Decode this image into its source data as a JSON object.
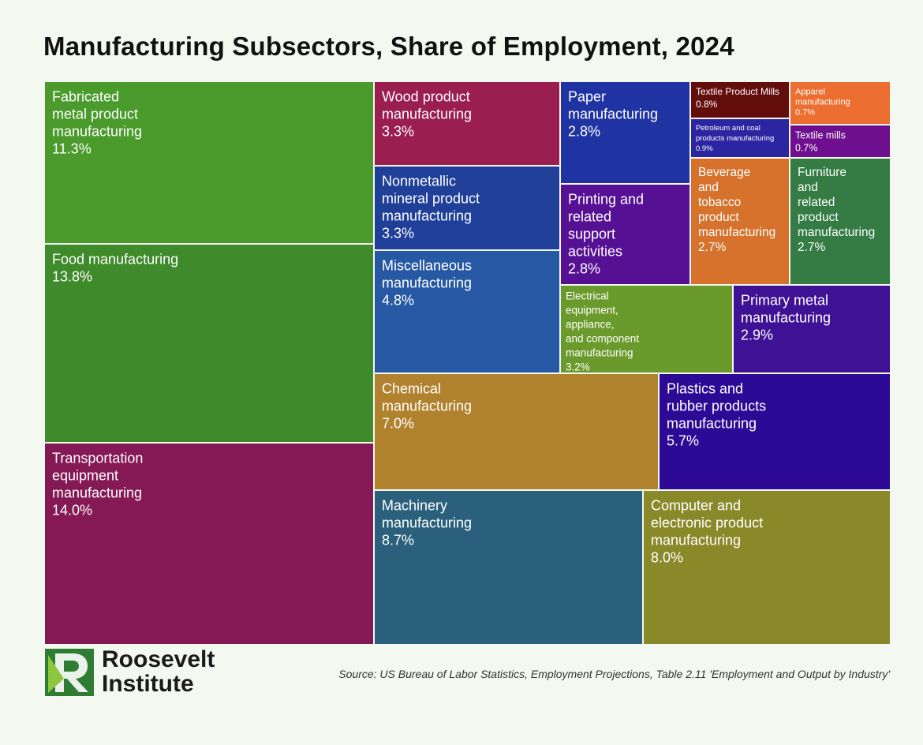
{
  "chart_data": {
    "type": "treemap",
    "title": "Manufacturing Subsectors, Share of Employment, 2024",
    "value_unit": "%",
    "items": [
      {
        "id": "fabricated-metal",
        "label": [
          "Fabricated",
          "metal product",
          "manufacturing"
        ],
        "value": 11.3,
        "value_label": "11.3%",
        "color": "#4a9a2c"
      },
      {
        "id": "food",
        "label": [
          "Food manufacturing"
        ],
        "value": 13.8,
        "value_label": "13.8%",
        "color": "#3f8a2a"
      },
      {
        "id": "transportation-equipment",
        "label": [
          "Transportation",
          "equipment",
          "manufacturing"
        ],
        "value": 14.0,
        "value_label": "14.0%",
        "color": "#851955"
      },
      {
        "id": "wood-product",
        "label": [
          "Wood product",
          "manufacturing"
        ],
        "value": 3.3,
        "value_label": "3.3%",
        "color": "#9a1e50"
      },
      {
        "id": "nonmetallic-mineral",
        "label": [
          "Nonmetallic",
          "mineral product",
          "manufacturing"
        ],
        "value": 3.3,
        "value_label": "3.3%",
        "color": "#1f3f99"
      },
      {
        "id": "miscellaneous",
        "label": [
          "Miscellaneous",
          "manufacturing"
        ],
        "value": 4.8,
        "value_label": "4.8%",
        "color": "#2758a4"
      },
      {
        "id": "paper",
        "label": [
          "Paper",
          "manufacturing"
        ],
        "value": 2.8,
        "value_label": "2.8%",
        "color": "#1f34a2"
      },
      {
        "id": "printing",
        "label": [
          "Printing and",
          "related",
          "support",
          "activities"
        ],
        "value": 2.8,
        "value_label": "2.8%",
        "color": "#561094"
      },
      {
        "id": "textile-product-mills",
        "label": [
          "Textile Product Mills"
        ],
        "value": 0.8,
        "value_label": "0.8%",
        "color": "#630d0d"
      },
      {
        "id": "petroleum-coal",
        "label": [
          "Petroleum and coal",
          "products manufacturing"
        ],
        "value": 0.9,
        "value_label": "0.9%",
        "color": "#2c25a1"
      },
      {
        "id": "apparel",
        "label": [
          "Apparel",
          "manufacturing"
        ],
        "value": 0.7,
        "value_label": "0.7%",
        "color": "#ec6e30"
      },
      {
        "id": "textile-mills",
        "label": [
          "Textile mills"
        ],
        "value": 0.7,
        "value_label": "0.7%",
        "color": "#6e0f8f"
      },
      {
        "id": "beverage-tobacco",
        "label": [
          "Beverage",
          "and",
          "tobacco",
          "product",
          "manufacturing"
        ],
        "value": 2.7,
        "value_label": "2.7%",
        "color": "#d6722c"
      },
      {
        "id": "furniture",
        "label": [
          "Furniture",
          "and",
          "related",
          "product",
          "manufacturing"
        ],
        "value": 2.7,
        "value_label": "2.7%",
        "color": "#347c43"
      },
      {
        "id": "electrical-equipment",
        "label": [
          "Electrical",
          "equipment,",
          "appliance,",
          "and component",
          "manufacturing"
        ],
        "value": 3.2,
        "value_label": "3.2%",
        "color": "#6b9a2c"
      },
      {
        "id": "primary-metal",
        "label": [
          "Primary metal",
          "manufacturing"
        ],
        "value": 2.9,
        "value_label": "2.9%",
        "color": "#3f1194"
      },
      {
        "id": "chemical",
        "label": [
          "Chemical",
          "manufacturing"
        ],
        "value": 7.0,
        "value_label": "7.0%",
        "color": "#b0822e"
      },
      {
        "id": "plastics-rubber",
        "label": [
          "Plastics and",
          "rubber products",
          "manufacturing"
        ],
        "value": 5.7,
        "value_label": "5.7%",
        "color": "#2d0a96"
      },
      {
        "id": "machinery",
        "label": [
          "Machinery",
          "manufacturing"
        ],
        "value": 8.7,
        "value_label": "8.7%",
        "color": "#2b607c"
      },
      {
        "id": "computer-electronic",
        "label": [
          "Computer and",
          "electronic product",
          "manufacturing"
        ],
        "value": 8.0,
        "value_label": "8.0%",
        "color": "#8a892a"
      }
    ]
  },
  "branding": {
    "logo_line1": "Roosevelt",
    "logo_line2": "Institute",
    "logo_mark": "R",
    "logo_color": "#2f7d32",
    "logo_light": "#8dc63f"
  },
  "source": "Source: US Bureau of Labor Statistics, Employment Projections, Table 2.11 'Employment and Output by Industry'"
}
